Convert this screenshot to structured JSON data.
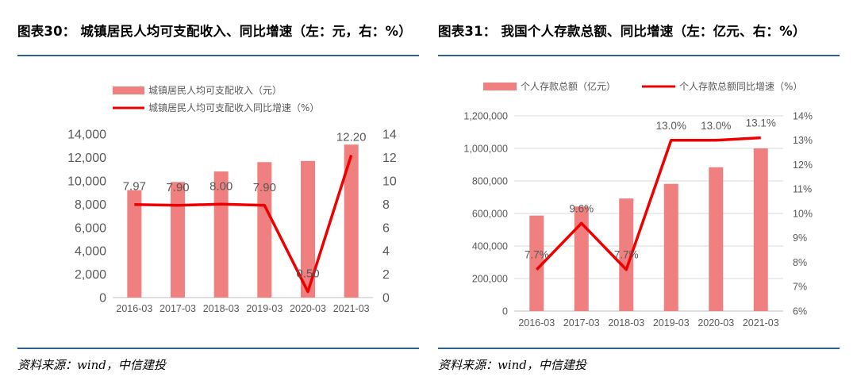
{
  "left": {
    "title": "图表30： 城镇居民人均可支配收入、同比增速（左：元，右：%）",
    "source": "资料来源：wind，中信建投",
    "chart_data": {
      "type": "bar",
      "categories": [
        "2016-03",
        "2017-03",
        "2018-03",
        "2019-03",
        "2020-03",
        "2021-03"
      ],
      "series": [
        {
          "name": "城镇居民人均可支配收入（元）",
          "type": "bar",
          "axis": "left",
          "values": [
            9200,
            9900,
            10800,
            11600,
            11700,
            13100
          ],
          "color": "#f07f7f"
        },
        {
          "name": "城镇居民人均可支配收入同比增速（%）",
          "type": "line",
          "axis": "right",
          "values": [
            7.97,
            7.9,
            8.0,
            7.9,
            0.5,
            12.2
          ],
          "labels": [
            "7.97",
            "7.90",
            "8.00",
            "7.90",
            "0.50",
            "12.20"
          ],
          "color": "#ee0000"
        }
      ],
      "ylim": [
        0,
        14000
      ],
      "yticks": [
        "0",
        "2,000",
        "4,000",
        "6,000",
        "8,000",
        "10,000",
        "12,000",
        "14,000"
      ],
      "y2lim": [
        0,
        14
      ],
      "y2ticks": [
        "0",
        "2",
        "4",
        "6",
        "8",
        "10",
        "12",
        "14"
      ],
      "legend": "top-left",
      "grid": false
    }
  },
  "right": {
    "title": "图表31： 我国个人存款总额、同比增速（左：亿元、右：%）",
    "source": "资料来源：wind，中信建投",
    "chart_data": {
      "type": "bar",
      "categories": [
        "2016-03",
        "2017-03",
        "2018-03",
        "2019-03",
        "2020-03",
        "2021-03"
      ],
      "series": [
        {
          "name": "个人存款总额（亿元）",
          "type": "bar",
          "axis": "left",
          "values": [
            587000,
            643000,
            692000,
            782000,
            884000,
            1000000
          ],
          "color": "#f07f7f"
        },
        {
          "name": "个人存款总额同比增速（%）",
          "type": "line",
          "axis": "right",
          "values": [
            7.7,
            9.6,
            7.7,
            13.0,
            13.0,
            13.1
          ],
          "labels": [
            "7.7%",
            "9.6%",
            "7.7%",
            "13.0%",
            "13.0%",
            "13.1%"
          ],
          "color": "#ee0000"
        }
      ],
      "ylim": [
        0,
        1200000
      ],
      "yticks": [
        "0",
        "200,000",
        "400,000",
        "600,000",
        "800,000",
        "1,000,000",
        "1,200,000"
      ],
      "y2lim": [
        6,
        14
      ],
      "y2ticks": [
        "6%",
        "7%",
        "8%",
        "9%",
        "10%",
        "11%",
        "12%",
        "13%",
        "14%"
      ],
      "legend": "top",
      "grid": true
    }
  }
}
